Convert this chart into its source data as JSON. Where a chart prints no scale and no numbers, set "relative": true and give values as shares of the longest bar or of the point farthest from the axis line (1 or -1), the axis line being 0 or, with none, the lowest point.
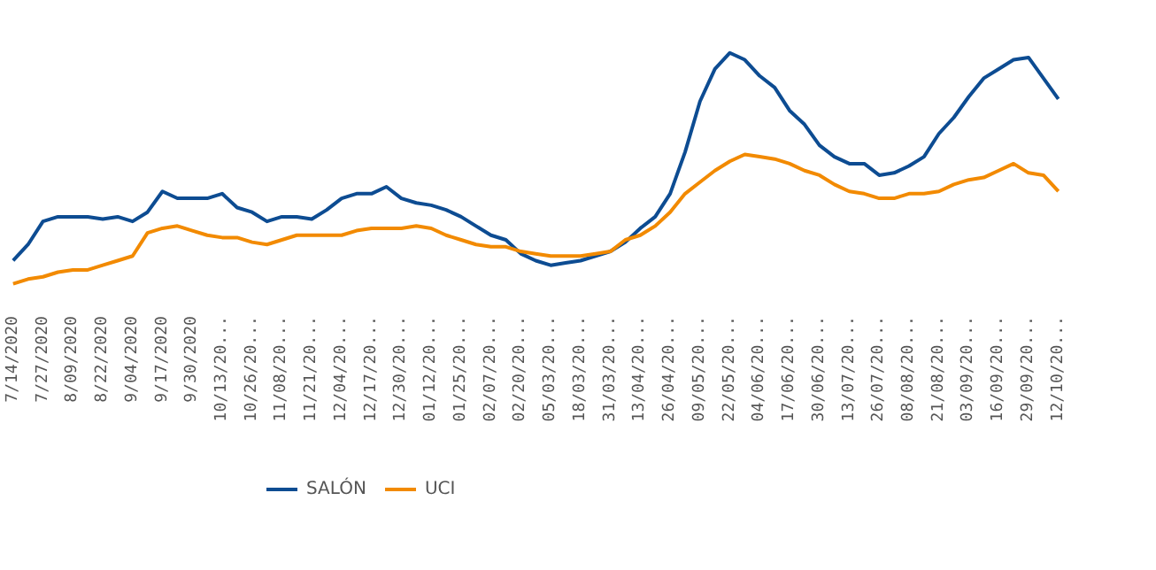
{
  "chart_data": {
    "type": "line",
    "relative": true,
    "legend": "bottom",
    "marker": "none",
    "line_style": "solid",
    "categories": [
      "7/14/2020",
      null,
      "7/27/2020",
      null,
      "8/09/2020",
      null,
      "8/22/2020",
      null,
      "9/04/2020",
      null,
      "9/17/2020",
      null,
      "9/30/2020",
      null,
      "10/13/20...",
      null,
      "10/26/20...",
      null,
      "11/08/20...",
      null,
      "11/21/20...",
      null,
      "12/04/20...",
      null,
      "12/17/20...",
      null,
      "12/30/20...",
      null,
      "01/12/20...",
      null,
      "01/25/20...",
      null,
      "02/07/20...",
      null,
      "02/20/20...",
      null,
      "05/03/20...",
      null,
      "18/03/20...",
      null,
      "31/03/20...",
      null,
      "13/04/20...",
      null,
      "26/04/20...",
      null,
      "09/05/20...",
      null,
      "22/05/20...",
      null,
      "04/06/20...",
      null,
      "17/06/20...",
      null,
      "30/06/20...",
      null,
      "13/07/20...",
      null,
      "26/07/20...",
      null,
      "08/08/20...",
      null,
      "21/08/20...",
      null,
      "03/09/20...",
      null,
      "16/09/20...",
      null,
      "29/09/20...",
      null,
      "12/10/20..."
    ],
    "series": [
      {
        "name": "SALÓN",
        "color": "#0d4c92",
        "values": [
          0.1,
          0.17,
          0.27,
          0.29,
          0.29,
          0.29,
          0.28,
          0.29,
          0.27,
          0.31,
          0.4,
          0.37,
          0.37,
          0.37,
          0.39,
          0.33,
          0.31,
          0.27,
          0.29,
          0.29,
          0.28,
          0.32,
          0.37,
          0.39,
          0.39,
          0.42,
          0.37,
          0.35,
          0.34,
          0.32,
          0.29,
          0.25,
          0.21,
          0.19,
          0.13,
          0.1,
          0.08,
          0.09,
          0.1,
          0.12,
          0.14,
          0.18,
          0.24,
          0.29,
          0.39,
          0.57,
          0.79,
          0.93,
          1.0,
          0.97,
          0.9,
          0.85,
          0.75,
          0.69,
          0.6,
          0.55,
          0.52,
          0.52,
          0.47,
          0.48,
          0.51,
          0.55,
          0.65,
          0.72,
          0.81,
          0.89,
          0.93,
          0.97,
          0.98,
          0.89,
          0.8
        ]
      },
      {
        "name": "UCI",
        "color": "#f28a00",
        "values": [
          0,
          0.02,
          0.03,
          0.05,
          0.06,
          0.06,
          0.08,
          0.1,
          0.12,
          0.22,
          0.24,
          0.25,
          0.23,
          0.21,
          0.2,
          0.2,
          0.18,
          0.17,
          0.19,
          0.21,
          0.21,
          0.21,
          0.21,
          0.23,
          0.24,
          0.24,
          0.24,
          0.25,
          0.24,
          0.21,
          0.19,
          0.17,
          0.16,
          0.16,
          0.14,
          0.13,
          0.12,
          0.12,
          0.12,
          0.13,
          0.14,
          0.19,
          0.21,
          0.25,
          0.31,
          0.39,
          0.44,
          0.49,
          0.53,
          0.56,
          0.55,
          0.54,
          0.52,
          0.49,
          0.47,
          0.43,
          0.4,
          0.39,
          0.37,
          0.37,
          0.39,
          0.39,
          0.4,
          0.43,
          0.45,
          0.46,
          0.49,
          0.52,
          0.48,
          0.47,
          0.4
        ]
      }
    ]
  }
}
